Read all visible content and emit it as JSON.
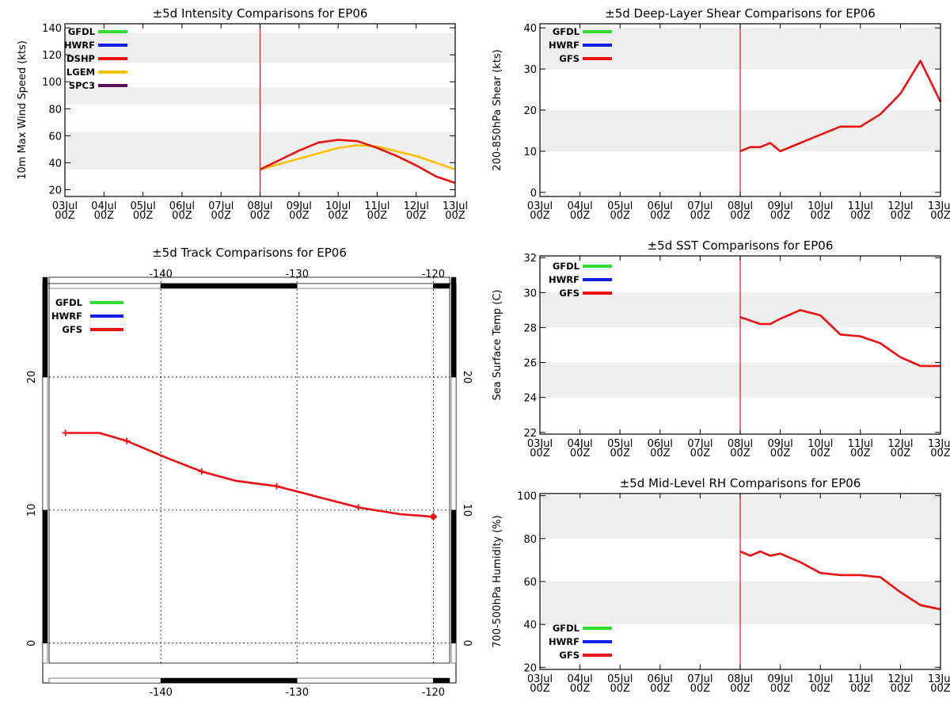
{
  "chart_data": [
    {
      "id": "intensity",
      "type": "line",
      "title": "±5d Intensity Comparisons for EP06",
      "ylabel": "10m Max Wind Speed (kts)",
      "ylim": [
        15,
        143
      ],
      "yticks": [
        20,
        40,
        60,
        80,
        100,
        120,
        140
      ],
      "bands": [
        [
          35,
          63
        ],
        [
          83,
          96
        ],
        [
          114,
          136
        ]
      ],
      "xtick_labels": [
        "03Jul\n00Z",
        "04Jul\n00Z",
        "05Jul\n00Z",
        "06Jul\n00Z",
        "07Jul\n00Z",
        "08Jul\n00Z",
        "09Jul\n00Z",
        "10Jul\n00Z",
        "11Jul\n00Z",
        "12Jul\n00Z",
        "13Jul\n00Z"
      ],
      "xlim": [
        0,
        10
      ],
      "vline": 5,
      "legend": [
        {
          "name": "GFDL",
          "color": "#33dd33"
        },
        {
          "name": "HWRF",
          "color": "#1122ee"
        },
        {
          "name": "DSHP",
          "color": "#ee1111"
        },
        {
          "name": "LGEM",
          "color": "#ffc000"
        },
        {
          "name": "SPC3",
          "color": "#5a0a5a"
        }
      ],
      "series": [
        {
          "name": "LGEM",
          "color": "#ffc000",
          "x": [
            5,
            6,
            7,
            7.5,
            8,
            9,
            10
          ],
          "y": [
            35,
            43,
            51,
            53,
            52,
            45,
            35
          ]
        },
        {
          "name": "DSHP",
          "color": "#ee1111",
          "x": [
            5,
            5.5,
            6,
            6.5,
            7,
            7.5,
            8,
            8.5,
            9,
            9.5,
            10
          ],
          "y": [
            35,
            42,
            49,
            55,
            57,
            56,
            51,
            45,
            38,
            30,
            25
          ]
        }
      ]
    },
    {
      "id": "shear",
      "type": "line",
      "title": "±5d Deep-Layer Shear Comparisons for EP06",
      "ylabel": "200-850hPa Shear (kts)",
      "ylim": [
        -1,
        41
      ],
      "yticks": [
        0,
        10,
        20,
        30,
        40
      ],
      "bands": [
        [
          10,
          20
        ],
        [
          30,
          40
        ]
      ],
      "xtick_labels": [
        "03Jul\n00Z",
        "04Jul\n00Z",
        "05Jul\n00Z",
        "06Jul\n00Z",
        "07Jul\n00Z",
        "08Jul\n00Z",
        "09Jul\n00Z",
        "10Jul\n00Z",
        "11Jul\n00Z",
        "12Jul\n00Z",
        "13Jul\n00Z"
      ],
      "xlim": [
        0,
        10
      ],
      "vline": 5,
      "legend": [
        {
          "name": "GFDL",
          "color": "#33dd33"
        },
        {
          "name": "HWRF",
          "color": "#1122ee"
        },
        {
          "name": "GFS",
          "color": "#ee1111"
        }
      ],
      "series": [
        {
          "name": "GFS",
          "color": "#ee1111",
          "x": [
            5,
            5.25,
            5.5,
            5.75,
            6,
            6.5,
            7,
            7.5,
            8,
            8.5,
            9,
            9.5,
            10
          ],
          "y": [
            10,
            11,
            11,
            12,
            10,
            12,
            14,
            16,
            16,
            19,
            24,
            32,
            22
          ]
        }
      ]
    },
    {
      "id": "sst",
      "type": "line",
      "title": "±5d SST Comparisons for EP06",
      "ylabel": "Sea Surface Temp (C)",
      "ylim": [
        21.9,
        32.1
      ],
      "yticks": [
        22,
        24,
        26,
        28,
        30,
        32
      ],
      "bands": [
        [
          24,
          26
        ],
        [
          28,
          30
        ]
      ],
      "xtick_labels": [
        "03Jul\n00Z",
        "04Jul\n00Z",
        "05Jul\n00Z",
        "06Jul\n00Z",
        "07Jul\n00Z",
        "08Jul\n00Z",
        "09Jul\n00Z",
        "10Jul\n00Z",
        "11Jul\n00Z",
        "12Jul\n00Z",
        "13Jul\n00Z"
      ],
      "xlim": [
        0,
        10
      ],
      "vline": 5,
      "legend": [
        {
          "name": "GFDL",
          "color": "#33dd33"
        },
        {
          "name": "HWRF",
          "color": "#1122ee"
        },
        {
          "name": "GFS",
          "color": "#ee1111"
        }
      ],
      "series": [
        {
          "name": "GFS",
          "color": "#ee1111",
          "x": [
            5,
            5.5,
            5.75,
            6,
            6.5,
            7,
            7.5,
            8,
            8.5,
            9,
            9.5,
            10
          ],
          "y": [
            28.6,
            28.2,
            28.2,
            28.5,
            29.0,
            28.7,
            27.6,
            27.5,
            27.1,
            26.3,
            25.8,
            25.8
          ]
        }
      ]
    },
    {
      "id": "rh",
      "type": "line",
      "title": "±5d Mid-Level RH Comparisons for EP06",
      "ylabel": "700-500hPa Humidity (%)",
      "ylim": [
        19,
        101
      ],
      "yticks": [
        20,
        40,
        60,
        80,
        100
      ],
      "bands": [
        [
          40,
          60
        ],
        [
          80,
          100
        ]
      ],
      "xtick_labels": [
        "03Jul\n00Z",
        "04Jul\n00Z",
        "05Jul\n00Z",
        "06Jul\n00Z",
        "07Jul\n00Z",
        "08Jul\n00Z",
        "09Jul\n00Z",
        "10Jul\n00Z",
        "11Jul\n00Z",
        "12Jul\n00Z",
        "13Jul\n00Z"
      ],
      "xlim": [
        0,
        10
      ],
      "vline": 5,
      "legend": [
        {
          "name": "GFDL",
          "color": "#33dd33"
        },
        {
          "name": "HWRF",
          "color": "#1122ee"
        },
        {
          "name": "GFS",
          "color": "#ee1111"
        }
      ],
      "series": [
        {
          "name": "GFS",
          "color": "#ee1111",
          "x": [
            5,
            5.25,
            5.5,
            5.75,
            6,
            6.5,
            7,
            7.5,
            8,
            8.5,
            9,
            9.5,
            10
          ],
          "y": [
            74,
            72,
            74,
            72,
            73,
            69,
            64,
            63,
            63,
            62,
            55,
            49,
            47
          ]
        }
      ]
    },
    {
      "id": "track",
      "type": "line",
      "title": "±5d Track Comparisons for EP06",
      "lon_range": [
        -148.2,
        -118.8
      ],
      "lat_range": [
        -1.5,
        27.5
      ],
      "lon_ticks": [
        -140,
        -130,
        -120
      ],
      "lat_ticks": [
        0,
        10,
        20
      ],
      "legend": [
        {
          "name": "GFDL",
          "color": "#33dd33"
        },
        {
          "name": "HWRF",
          "color": "#1122ee"
        },
        {
          "name": "GFS",
          "color": "#ee1111"
        }
      ],
      "series": [
        {
          "name": "GFS",
          "color": "#ee1111",
          "lon": [
            -120,
            -122.5,
            -125.5,
            -128.5,
            -131.5,
            -134.5,
            -137,
            -139.5,
            -142.5,
            -144.5,
            -147
          ],
          "lat": [
            9.5,
            9.7,
            10.2,
            11.0,
            11.8,
            12.2,
            12.9,
            13.9,
            15.2,
            15.8,
            15.8
          ],
          "markers": [
            0,
            2,
            4,
            6,
            8,
            10
          ]
        }
      ]
    }
  ]
}
